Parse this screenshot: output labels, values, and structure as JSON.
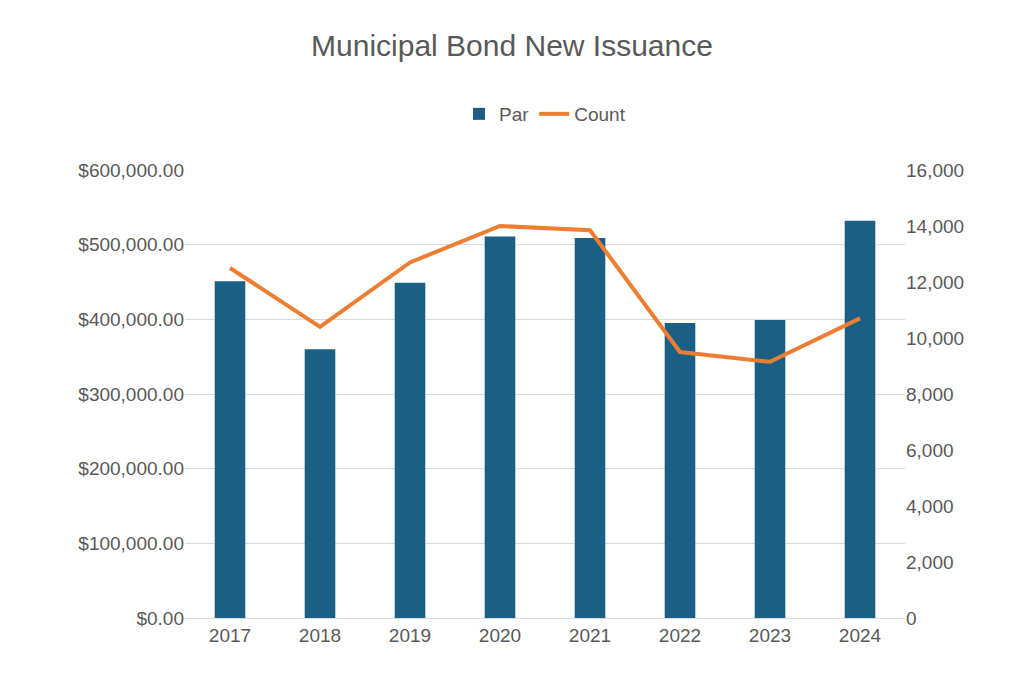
{
  "chart_data": {
    "type": "bar",
    "title": "Municipal Bond New Issuance",
    "categories": [
      "2017",
      "2018",
      "2019",
      "2020",
      "2021",
      "2022",
      "2023",
      "2024"
    ],
    "series": [
      {
        "name": "Par",
        "type": "bar",
        "color": "#1b5f84",
        "values": [
          451000,
          360000,
          449000,
          511000,
          509000,
          395000,
          399000,
          532000
        ]
      },
      {
        "name": "Count",
        "type": "line",
        "color": "#ed7d31",
        "axis": "y2",
        "values": [
          12500,
          10400,
          12700,
          14000,
          13850,
          9500,
          9150,
          10700
        ]
      }
    ],
    "ylim": [
      0,
      600000
    ],
    "yticks": [
      {
        "value": 0,
        "label": "$0.00"
      },
      {
        "value": 100000,
        "label": "$100,000.00"
      },
      {
        "value": 200000,
        "label": "$200,000.00"
      },
      {
        "value": 300000,
        "label": "$300,000.00"
      },
      {
        "value": 400000,
        "label": "$400,000.00"
      },
      {
        "value": 500000,
        "label": "$500,000.00"
      },
      {
        "value": 600000,
        "label": "$600,000.00"
      }
    ],
    "y2lim": [
      0,
      16000
    ],
    "y2ticks": [
      0,
      {
        "value": 2000,
        "label": "2,000"
      },
      {
        "value": 4000,
        "label": "4,000"
      },
      {
        "value": 6000,
        "label": "6,000"
      },
      {
        "value": 8000,
        "label": "8,000"
      },
      {
        "value": 10000,
        "label": "10,000"
      },
      {
        "value": 12000,
        "label": "12,000"
      },
      {
        "value": 14000,
        "label": "14,000"
      },
      {
        "value": 16000,
        "label": "16,000"
      }
    ],
    "grid": true,
    "legend": "top"
  }
}
